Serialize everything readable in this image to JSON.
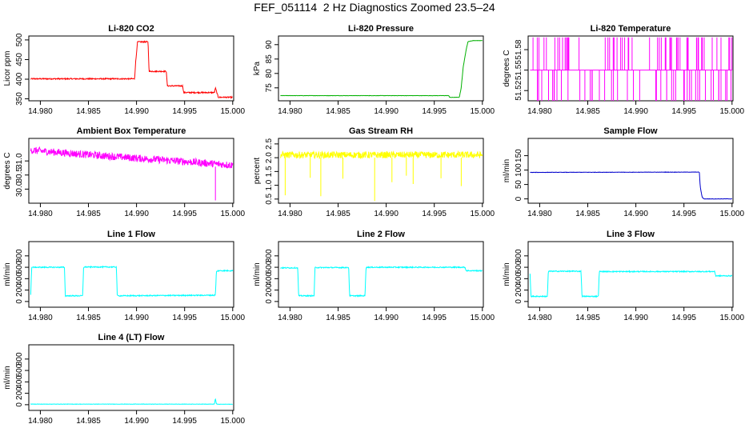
{
  "figure_title": "FEF_051114  2 Hz Diagnostics Zoomed 23.5–24",
  "chart_data": [
    {
      "type": "line",
      "title": "Li-820 CO2",
      "ylabel": "Licor ppm",
      "color": "#ff0000",
      "xlim": [
        14.9788,
        15.0001
      ],
      "ylim": [
        345,
        510
      ],
      "xticks": [
        "14.980",
        "14.985",
        "14.990",
        "14.995",
        "15.000"
      ],
      "yticks": [
        "350",
        "400",
        "450",
        "500"
      ],
      "noise": 1.5,
      "series": [
        {
          "x": [
            14.979,
            14.9898,
            14.9899,
            14.9901,
            14.9912,
            14.9913,
            14.9931,
            14.9932,
            14.9948,
            14.9949,
            14.9981,
            14.9982,
            14.9984,
            14.9985,
            15.0
          ],
          "y": [
            401,
            401,
            440,
            495,
            495,
            420,
            420,
            383,
            383,
            366,
            366,
            378,
            362,
            354,
            354
          ]
        }
      ]
    },
    {
      "type": "line",
      "title": "Li-820 Pressure",
      "ylabel": "kPa",
      "color": "#00b000",
      "xlim": [
        14.9788,
        15.0001
      ],
      "ylim": [
        70.5,
        93
      ],
      "xticks": [
        "14.980",
        "14.985",
        "14.990",
        "14.995",
        "15.000"
      ],
      "yticks": [
        "75",
        "80",
        "85",
        "90"
      ],
      "noise": 0.05,
      "series": [
        {
          "x": [
            14.979,
            14.9965,
            14.9966,
            14.9976,
            14.9978,
            14.998,
            14.9983,
            14.9985,
            14.999,
            15.0
          ],
          "y": [
            72.3,
            72.3,
            71.7,
            71.7,
            75,
            82,
            88,
            91,
            91.4,
            91.4
          ]
        }
      ]
    },
    {
      "type": "line",
      "title": "Li-820 Temperature",
      "ylabel": "degrees C",
      "color": "#ff00ff",
      "xlim": [
        14.9788,
        15.0001
      ],
      "ylim": [
        51.505,
        51.6
      ],
      "xticks": [
        "14.980",
        "14.985",
        "14.990",
        "14.995",
        "15.000"
      ],
      "yticks": [
        "51.52",
        "51.55",
        "51.58"
      ],
      "baseline": 51.55,
      "levels": [
        51.598,
        51.502
      ]
    },
    {
      "type": "line",
      "title": "Ambient Box Temperature",
      "ylabel": "degrees C",
      "color": "#ff00ff",
      "xlim": [
        14.9788,
        15.0001
      ],
      "ylim": [
        29.5,
        31.8
      ],
      "xticks": [
        "14.980",
        "14.985",
        "14.990",
        "14.995",
        "15.000"
      ],
      "yticks": [
        "30.0",
        "30.5",
        "31.0"
      ],
      "noise": 0.13,
      "series": [
        {
          "x": [
            14.979,
            14.985,
            14.99,
            14.995,
            15.0
          ],
          "y": [
            31.38,
            31.22,
            31.1,
            30.98,
            30.85
          ]
        }
      ]
    },
    {
      "type": "line",
      "title": "Gas Stream RH",
      "ylabel": "percent",
      "color": "#ffff00",
      "xlim": [
        14.9788,
        15.0001
      ],
      "ylim": [
        0.35,
        2.7
      ],
      "xticks": [
        "14.980",
        "14.985",
        "14.990",
        "14.995",
        "15.000"
      ],
      "yticks": [
        "0.5",
        "1.0",
        "1.5",
        "2.0",
        "2.5"
      ],
      "noise": 0.12,
      "series": [
        {
          "x": [
            14.979,
            15.0
          ],
          "y": [
            2.1,
            2.1
          ]
        }
      ]
    },
    {
      "type": "line",
      "title": "Sample Flow",
      "ylabel": "ml/min",
      "color": "#0000cc",
      "xlim": [
        14.9788,
        15.0001
      ],
      "ylim": [
        -15,
        210
      ],
      "xticks": [
        "14.980",
        "14.985",
        "14.990",
        "14.995",
        "15.000"
      ],
      "yticks": [
        "0",
        "50",
        "100",
        "150"
      ],
      "noise": 0.6,
      "series": [
        {
          "x": [
            14.979,
            14.9966,
            14.9967,
            14.9969,
            14.9971,
            15.0
          ],
          "y": [
            92,
            93,
            40,
            5,
            0,
            0
          ]
        }
      ]
    },
    {
      "type": "line",
      "title": "Line 1 Flow",
      "ylabel": "ml/min",
      "color": "#00ffff",
      "xlim": [
        14.9788,
        15.0001
      ],
      "ylim": [
        -100,
        1050
      ],
      "xticks": [
        "14.980",
        "14.985",
        "14.990",
        "14.995",
        "15.000"
      ],
      "yticks": [
        "0",
        "200",
        "400",
        "600",
        "800"
      ],
      "noise": 9,
      "series": [
        {
          "x": [
            14.979,
            14.9791,
            14.9825,
            14.9826,
            14.9844,
            14.9845,
            14.9879,
            14.988,
            14.9982,
            14.9983,
            14.9985,
            15.0
          ],
          "y": [
            120,
            600,
            600,
            100,
            100,
            605,
            605,
            100,
            110,
            520,
            540,
            540
          ]
        }
      ]
    },
    {
      "type": "line",
      "title": "Line 2 Flow",
      "ylabel": "ml/min",
      "color": "#00ffff",
      "xlim": [
        14.9788,
        15.0001
      ],
      "ylim": [
        -100,
        1050
      ],
      "xticks": [
        "14.980",
        "14.985",
        "14.990",
        "14.995",
        "15.000"
      ],
      "yticks": [
        "0",
        "200",
        "400",
        "600",
        "800"
      ],
      "noise": 9,
      "series": [
        {
          "x": [
            14.979,
            14.9808,
            14.9809,
            14.9825,
            14.9826,
            14.9861,
            14.9862,
            14.9878,
            14.9879,
            14.9982,
            14.9983,
            15.0
          ],
          "y": [
            590,
            590,
            100,
            100,
            595,
            595,
            100,
            100,
            600,
            600,
            540,
            540
          ]
        }
      ]
    },
    {
      "type": "line",
      "title": "Line 3 Flow",
      "ylabel": "ml/min",
      "color": "#00ffff",
      "xlim": [
        14.9788,
        15.0001
      ],
      "ylim": [
        -100,
        1050
      ],
      "xticks": [
        "14.980",
        "14.985",
        "14.990",
        "14.995",
        "15.000"
      ],
      "yticks": [
        "0",
        "200",
        "400",
        "600",
        "800"
      ],
      "noise": 9,
      "series": [
        {
          "x": [
            14.979,
            14.9791,
            14.9808,
            14.9809,
            14.9843,
            14.9844,
            14.9861,
            14.9862,
            14.9982,
            14.9983,
            15.0
          ],
          "y": [
            480,
            90,
            90,
            530,
            530,
            90,
            90,
            525,
            525,
            450,
            450
          ]
        }
      ]
    },
    {
      "type": "line",
      "title": "Line 4 (LT) Flow",
      "ylabel": "ml/min",
      "color": "#00ffff",
      "xlim": [
        14.9788,
        15.0001
      ],
      "ylim": [
        -100,
        1050
      ],
      "xticks": [
        "14.980",
        "14.985",
        "14.990",
        "14.995",
        "15.000"
      ],
      "yticks": [
        "0",
        "200",
        "400",
        "600",
        "800"
      ],
      "noise": 3,
      "series": [
        {
          "x": [
            14.979,
            14.9981,
            14.9982,
            14.9983,
            14.9984,
            15.0
          ],
          "y": [
            10,
            10,
            110,
            15,
            8,
            8
          ]
        }
      ]
    }
  ]
}
